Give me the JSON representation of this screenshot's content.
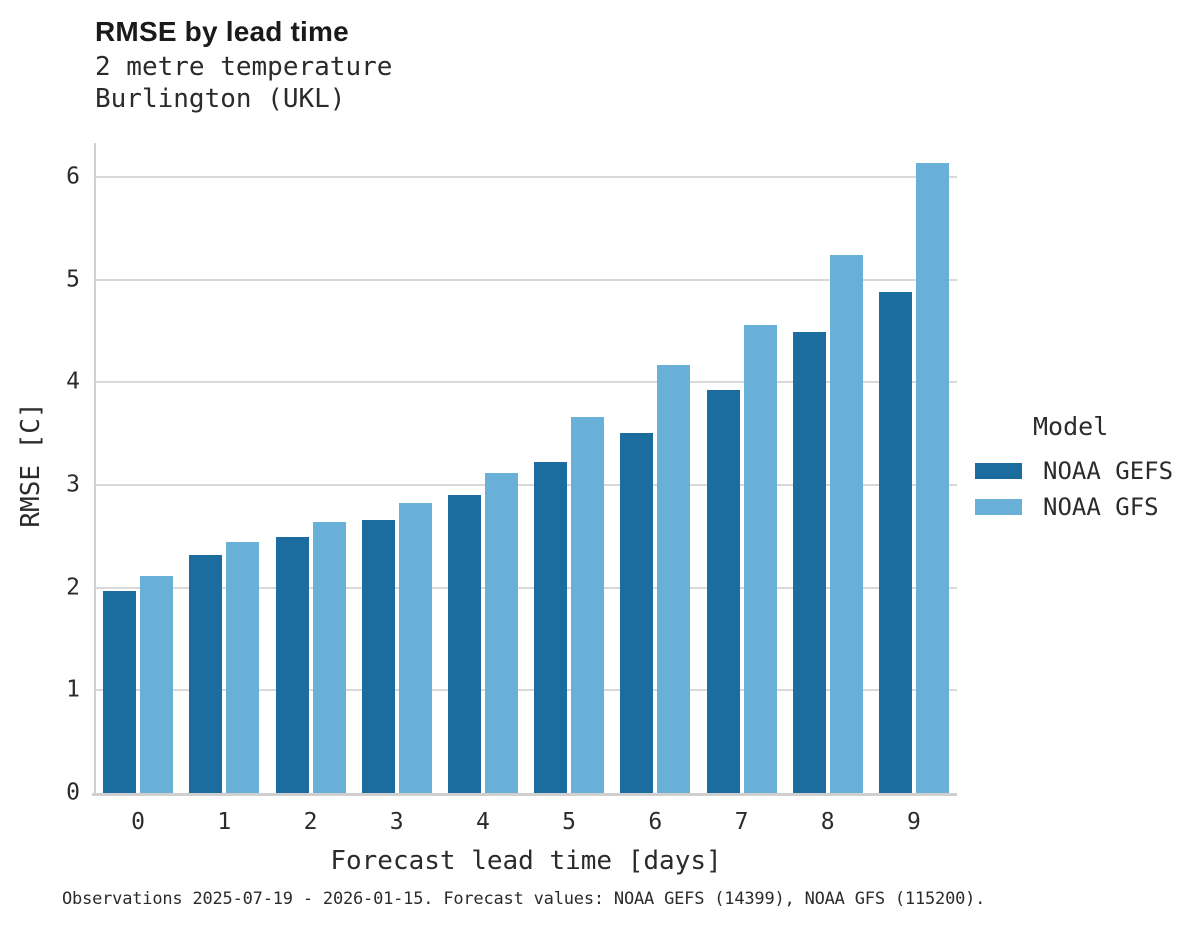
{
  "chart_data": {
    "type": "bar",
    "title": "RMSE by lead time",
    "subtitle": [
      "2 metre temperature",
      "Burlington (UKL)"
    ],
    "categories": [
      "0",
      "1",
      "2",
      "3",
      "4",
      "5",
      "6",
      "7",
      "8",
      "9"
    ],
    "series": [
      {
        "name": "NOAA GEFS",
        "color": "#1A6D9E",
        "values": [
          1.97,
          2.32,
          2.49,
          2.66,
          2.9,
          3.22,
          3.51,
          3.92,
          4.49,
          4.88
        ]
      },
      {
        "name": "NOAA GFS",
        "color": "#69B0D8",
        "values": [
          2.11,
          2.44,
          2.64,
          2.82,
          3.12,
          3.66,
          4.17,
          4.56,
          5.24,
          6.14
        ]
      }
    ],
    "xlabel": "Forecast lead time [days]",
    "ylabel": "RMSE [C]",
    "ylim": [
      0,
      6.33
    ],
    "yticks": [
      0,
      1,
      2,
      3,
      4,
      5,
      6
    ],
    "grid": "horizontal",
    "legend_position": "right"
  },
  "legend": {
    "title": "Model"
  },
  "footer": {
    "note": "Observations 2025-07-19 - 2026-01-15. Forecast values: NOAA GEFS (14399), NOAA GFS (115200)."
  },
  "colors": {
    "series_dark": "#1A6D9E",
    "series_light": "#69B0D8",
    "gridline": "#D9D9D9",
    "axis": "#CFCFCF",
    "text": "#2B2B2B",
    "title_text": "#1A1A1A",
    "background": "#FFFFFF"
  }
}
